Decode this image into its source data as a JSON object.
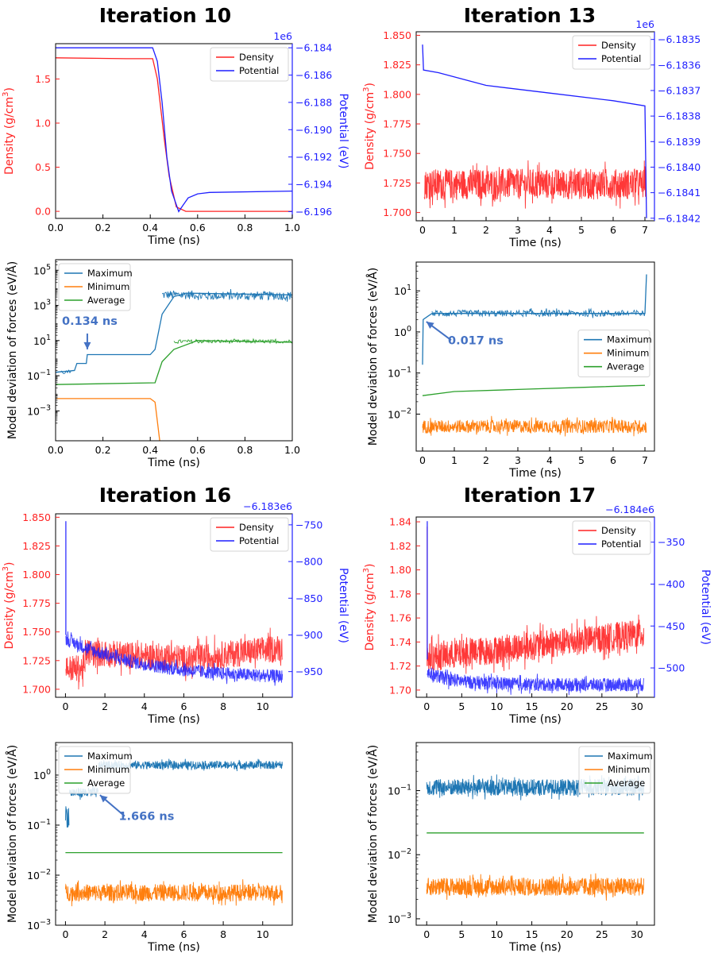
{
  "colors": {
    "density": "#ff2222",
    "potential": "#1f1fff",
    "maximum": "#1f77b4",
    "minimum": "#ff7f0e",
    "average": "#2ca02c",
    "annotation": "#4472c4"
  },
  "chart_data": [
    {
      "id": "it10_top",
      "type": "line",
      "title": "Iteration 10",
      "xlabel": "Time (ns)",
      "ylabel": "Density (g/cm3)",
      "y2label": "Potential (eV)",
      "xlim": [
        0,
        1.0
      ],
      "ylim": [
        -0.08,
        1.9
      ],
      "xticks": [
        0,
        0.2,
        0.4,
        0.6,
        0.8,
        1.0
      ],
      "xtick_labels": [
        "0.0",
        "0.2",
        "0.4",
        "0.6",
        "0.8",
        "1.0"
      ],
      "yticks": [
        0,
        0.5,
        1.0,
        1.5
      ],
      "ytick_labels": [
        "0.0",
        "0.5",
        "1.0",
        "1.5"
      ],
      "y2lim": [
        -6.1965,
        -6.1837
      ],
      "y2ticks": [
        -6.196,
        -6.194,
        -6.192,
        -6.19,
        -6.188,
        -6.186,
        -6.184
      ],
      "y2tick_labels": [
        "−6.196",
        "−6.194",
        "−6.192",
        "−6.190",
        "−6.188",
        "−6.186",
        "−6.184"
      ],
      "y2offset": "1e6",
      "legend_loc": "upper-right",
      "series": [
        {
          "name": "Density",
          "axis": "left",
          "color": "#ff2222",
          "points": [
            [
              0.0,
              1.74
            ],
            [
              0.3,
              1.73
            ],
            [
              0.41,
              1.73
            ],
            [
              0.43,
              1.5
            ],
            [
              0.46,
              0.8
            ],
            [
              0.48,
              0.4
            ],
            [
              0.51,
              0.05
            ],
            [
              0.55,
              0.0
            ],
            [
              1.0,
              0.0
            ]
          ]
        },
        {
          "name": "Potential",
          "axis": "right",
          "color": "#1f1fff",
          "points": [
            [
              0.0,
              -6.184
            ],
            [
              0.41,
              -6.184
            ],
            [
              0.43,
              -6.185
            ],
            [
              0.45,
              -6.188
            ],
            [
              0.47,
              -6.192
            ],
            [
              0.49,
              -6.1945
            ],
            [
              0.52,
              -6.196
            ],
            [
              0.54,
              -6.1955
            ],
            [
              0.56,
              -6.195
            ],
            [
              0.6,
              -6.1947
            ],
            [
              0.65,
              -6.1946
            ],
            [
              1.0,
              -6.1945
            ]
          ]
        }
      ]
    },
    {
      "id": "it10_bot",
      "type": "line",
      "xlabel": "Time (ns)",
      "ylabel": "Model deviation of forces (eV/Å)",
      "xlim": [
        0,
        1.0
      ],
      "ylog": true,
      "ylim_log10": [
        -4.7,
        5.6
      ],
      "xticks": [
        0,
        0.2,
        0.4,
        0.6,
        0.8,
        1.0
      ],
      "xtick_labels": [
        "0.0",
        "0.2",
        "0.4",
        "0.6",
        "0.8",
        "1.0"
      ],
      "yticks_log10": [
        -3,
        -1,
        1,
        3,
        5
      ],
      "ytick_labels": [
        "10-3",
        "10-1",
        "101",
        "103",
        "105"
      ],
      "legend_loc": "upper-left",
      "annotation": {
        "text": "0.134 ns",
        "x": 0.134
      },
      "series": [
        {
          "name": "Maximum",
          "color": "#1f77b4",
          "points_log10": [
            [
              0,
              -0.8
            ],
            [
              0.08,
              -0.7
            ],
            [
              0.09,
              -0.3
            ],
            [
              0.13,
              -0.3
            ],
            [
              0.134,
              0.2
            ],
            [
              0.4,
              0.2
            ],
            [
              0.42,
              0.5
            ],
            [
              0.45,
              2.5
            ],
            [
              0.5,
              3.5
            ],
            [
              0.55,
              3.7
            ],
            [
              1.0,
              3.6
            ]
          ]
        },
        {
          "name": "Minimum",
          "color": "#ff7f0e",
          "points_log10": [
            [
              0,
              -2.3
            ],
            [
              0.4,
              -2.3
            ],
            [
              0.42,
              -2.5
            ],
            [
              0.44,
              -4.7
            ]
          ]
        },
        {
          "name": "Average",
          "color": "#2ca02c",
          "points_log10": [
            [
              0,
              -1.5
            ],
            [
              0.42,
              -1.4
            ],
            [
              0.45,
              -0.2
            ],
            [
              0.5,
              0.5
            ],
            [
              0.6,
              1.0
            ],
            [
              1.0,
              0.9
            ]
          ]
        }
      ]
    },
    {
      "id": "it13_top",
      "type": "line",
      "title": "Iteration 13",
      "xlabel": "Time (ns)",
      "ylabel": "Density (g/cm3)",
      "y2label": "",
      "xlim": [
        -0.2,
        7.3
      ],
      "ylim": [
        1.693,
        1.853
      ],
      "xticks": [
        0,
        1,
        2,
        3,
        4,
        5,
        6,
        7
      ],
      "xtick_labels": [
        "0",
        "1",
        "2",
        "3",
        "4",
        "5",
        "6",
        "7"
      ],
      "yticks": [
        1.7,
        1.725,
        1.75,
        1.775,
        1.8,
        1.825,
        1.85
      ],
      "ytick_labels": [
        "1.700",
        "1.725",
        "1.750",
        "1.775",
        "1.800",
        "1.825",
        "1.850"
      ],
      "y2lim": [
        -6.18421,
        -6.18347
      ],
      "y2ticks": [
        -6.1842,
        -6.1841,
        -6.184,
        -6.1839,
        -6.1838,
        -6.1837,
        -6.1836,
        -6.1835
      ],
      "y2tick_labels": [
        "−6.1842",
        "−6.1841",
        "−6.1840",
        "−6.1839",
        "−6.1838",
        "−6.1837",
        "−6.1836",
        "−6.1835"
      ],
      "y2offset": "1e6",
      "legend_loc": "upper-right",
      "series": [
        {
          "name": "Density",
          "axis": "left",
          "color": "#ff2222",
          "noisy": true,
          "mean": 1.724,
          "amp": 0.015,
          "from": 0.05,
          "to": 7.05
        },
        {
          "name": "Potential",
          "axis": "right",
          "color": "#1f1fff",
          "points": [
            [
              0.0,
              -6.18352
            ],
            [
              0.03,
              -6.18362
            ],
            [
              0.5,
              -6.18363
            ],
            [
              2,
              -6.18368
            ],
            [
              4,
              -6.18371
            ],
            [
              6,
              -6.18374
            ],
            [
              7.0,
              -6.18376
            ],
            [
              7.05,
              -6.1842
            ]
          ]
        }
      ]
    },
    {
      "id": "it13_bot",
      "type": "line",
      "xlabel": "Time (ns)",
      "ylabel": "Model deviation of forces (eV/Å)",
      "xlim": [
        -0.2,
        7.3
      ],
      "ylog": true,
      "ylim_log10": [
        -2.9,
        1.7
      ],
      "xticks": [
        0,
        1,
        2,
        3,
        4,
        5,
        6,
        7
      ],
      "xtick_labels": [
        "0",
        "1",
        "2",
        "3",
        "4",
        "5",
        "6",
        "7"
      ],
      "yticks_log10": [
        -2,
        -1,
        0,
        1
      ],
      "ytick_labels": [
        "10-2",
        "10-1",
        "100",
        "101"
      ],
      "legend_loc": "center-right",
      "annotation": {
        "text": "0.017 ns",
        "x": 0.017
      },
      "series": [
        {
          "name": "Maximum",
          "color": "#1f77b4",
          "points_log10": [
            [
              0,
              -0.8
            ],
            [
              0.02,
              0.3
            ],
            [
              0.2,
              0.4
            ],
            [
              0.3,
              0.45
            ],
            [
              7.0,
              0.45
            ],
            [
              7.05,
              1.4
            ]
          ]
        },
        {
          "name": "Minimum",
          "color": "#ff7f0e",
          "noisy": true,
          "mean": -2.3,
          "amp": 0.2
        },
        {
          "name": "Average",
          "color": "#2ca02c",
          "points_log10": [
            [
              0,
              -1.55
            ],
            [
              1,
              -1.45
            ],
            [
              3,
              -1.4
            ],
            [
              5,
              -1.35
            ],
            [
              7.0,
              -1.3
            ]
          ]
        }
      ]
    },
    {
      "id": "it16_top",
      "type": "line",
      "title": "Iteration 16",
      "xlabel": "Time (ns)",
      "ylabel": "Density (g/cm3)",
      "y2label": "Potential (eV)",
      "xlim": [
        -0.5,
        11.5
      ],
      "ylim": [
        1.693,
        1.853
      ],
      "xticks": [
        0,
        2,
        4,
        6,
        8,
        10
      ],
      "xtick_labels": [
        "0",
        "2",
        "4",
        "6",
        "8",
        "10"
      ],
      "yticks": [
        1.7,
        1.725,
        1.75,
        1.775,
        1.8,
        1.825,
        1.85
      ],
      "ytick_labels": [
        "1.700",
        "1.725",
        "1.750",
        "1.775",
        "1.800",
        "1.825",
        "1.850"
      ],
      "y2lim": [
        -985,
        -735
      ],
      "y2ticks": [
        -950,
        -900,
        -850,
        -800,
        -750
      ],
      "y2tick_labels": [
        "−950",
        "−900",
        "−850",
        "−800",
        "−750"
      ],
      "y2offset": "−6.183e6",
      "legend_loc": "upper-right",
      "series": [
        {
          "name": "Density",
          "axis": "left",
          "color": "#ff2222",
          "noisy": true,
          "mean": 1.725,
          "amp": 0.012
        },
        {
          "name": "Potential",
          "axis": "right",
          "color": "#1f1fff",
          "noisy": true
        }
      ]
    },
    {
      "id": "it16_bot",
      "type": "line",
      "xlabel": "Time (ns)",
      "ylabel": "Model deviation of forces (eV/Å)",
      "xlim": [
        -0.5,
        11.5
      ],
      "ylog": true,
      "ylim_log10": [
        -3.0,
        0.65
      ],
      "xticks": [
        0,
        2,
        4,
        6,
        8,
        10
      ],
      "xtick_labels": [
        "0",
        "2",
        "4",
        "6",
        "8",
        "10"
      ],
      "yticks_log10": [
        -3,
        -2,
        -1,
        0
      ],
      "ytick_labels": [
        "10-3",
        "10-2",
        "10-1",
        "100"
      ],
      "legend_loc": "upper-left",
      "annotation": {
        "text": "1.666 ns",
        "x": 1.666
      },
      "series": [
        {
          "name": "Maximum",
          "color": "#1f77b4",
          "noisy": true
        },
        {
          "name": "Minimum",
          "color": "#ff7f0e",
          "noisy": true
        },
        {
          "name": "Average",
          "color": "#2ca02c",
          "points_log10": [
            [
              0,
              -1.55
            ],
            [
              11,
              -1.55
            ]
          ]
        }
      ]
    },
    {
      "id": "it17_top",
      "type": "line",
      "title": "Iteration 17",
      "xlabel": "Time (ns)",
      "ylabel": "Density (g/cm3)",
      "y2label": "Potential (eV)",
      "xlim": [
        -1.5,
        32.5
      ],
      "ylim": [
        1.694,
        1.844
      ],
      "xticks": [
        0,
        5,
        10,
        15,
        20,
        25,
        30
      ],
      "xtick_labels": [
        "0",
        "5",
        "10",
        "15",
        "20",
        "25",
        "30"
      ],
      "yticks": [
        1.7,
        1.72,
        1.74,
        1.76,
        1.78,
        1.8,
        1.82,
        1.84
      ],
      "ytick_labels": [
        "1.70",
        "1.72",
        "1.74",
        "1.76",
        "1.78",
        "1.80",
        "1.82",
        "1.84"
      ],
      "y2lim": [
        -535,
        -320
      ],
      "y2ticks": [
        -500,
        -450,
        -400,
        -350
      ],
      "y2tick_labels": [
        "−500",
        "−450",
        "−400",
        "−350"
      ],
      "y2offset": "−6.184e6",
      "legend_loc": "upper-right",
      "series": [
        {
          "name": "Density",
          "axis": "left",
          "color": "#ff2222",
          "noisy": true
        },
        {
          "name": "Potential",
          "axis": "right",
          "color": "#1f1fff",
          "noisy": true
        }
      ]
    },
    {
      "id": "it17_bot",
      "type": "line",
      "xlabel": "Time (ns)",
      "ylabel": "Model deviation of forces (eV/Å)",
      "xlim": [
        -1.5,
        32.5
      ],
      "ylog": true,
      "ylim_log10": [
        -3.1,
        -0.25
      ],
      "xticks": [
        0,
        5,
        10,
        15,
        20,
        25,
        30
      ],
      "xtick_labels": [
        "0",
        "5",
        "10",
        "15",
        "20",
        "25",
        "30"
      ],
      "yticks_log10": [
        -3,
        -2,
        -1
      ],
      "ytick_labels": [
        "10-3",
        "10-2",
        "10-1"
      ],
      "legend_loc": "upper-right",
      "series": [
        {
          "name": "Maximum",
          "color": "#1f77b4",
          "noisy": true
        },
        {
          "name": "Minimum",
          "color": "#ff7f0e",
          "noisy": true
        },
        {
          "name": "Average",
          "color": "#2ca02c",
          "points_log10": [
            [
              0,
              -1.66
            ],
            [
              31,
              -1.66
            ]
          ]
        }
      ]
    }
  ]
}
